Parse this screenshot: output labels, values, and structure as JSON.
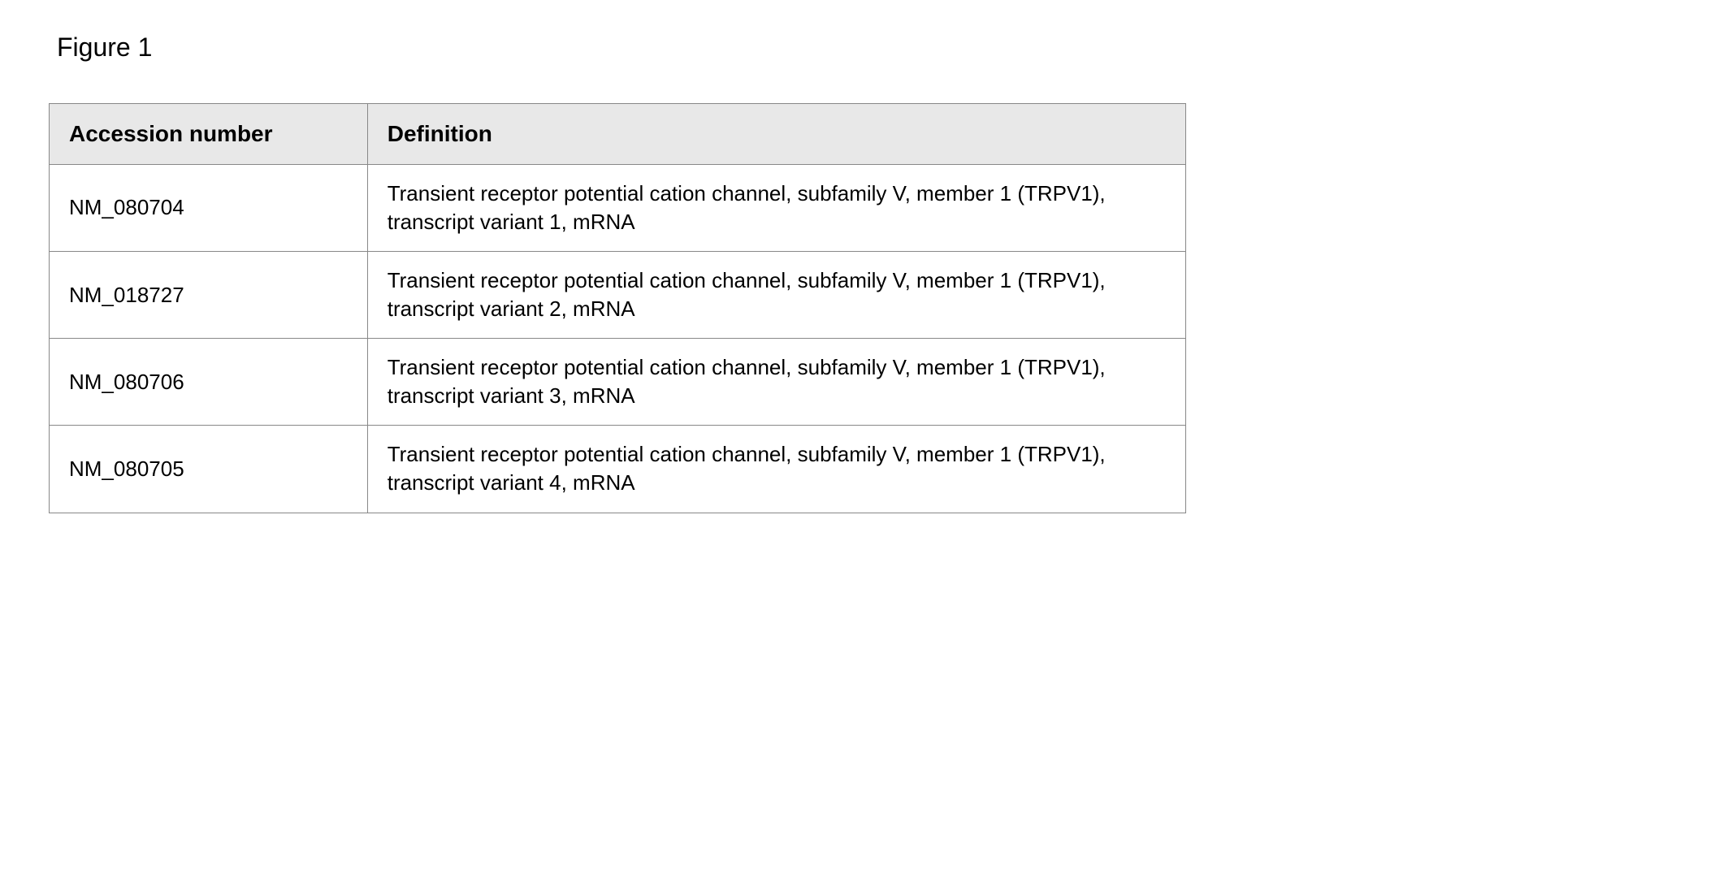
{
  "figure": {
    "title": "Figure 1"
  },
  "table": {
    "columns": [
      "Accession number",
      "Definition"
    ],
    "rows": [
      {
        "accession": "NM_080704",
        "definition": "Transient receptor potential cation channel, subfamily V, member 1 (TRPV1), transcript variant 1, mRNA"
      },
      {
        "accession": "NM_018727",
        "definition": "Transient receptor potential cation channel, subfamily V, member 1 (TRPV1), transcript variant 2, mRNA"
      },
      {
        "accession": "NM_080706",
        "definition": "Transient receptor potential cation channel, subfamily V, member 1 (TRPV1), transcript variant 3, mRNA"
      },
      {
        "accession": "NM_080705",
        "definition": "Transient receptor potential cation channel, subfamily V, member 1 (TRPV1), transcript variant 4, mRNA"
      }
    ],
    "header_bg": "#e8e8e8",
    "border_color": "#888888",
    "text_color": "#000000",
    "background_color": "#ffffff",
    "cell_fontsize": 26,
    "header_fontsize": 28
  }
}
